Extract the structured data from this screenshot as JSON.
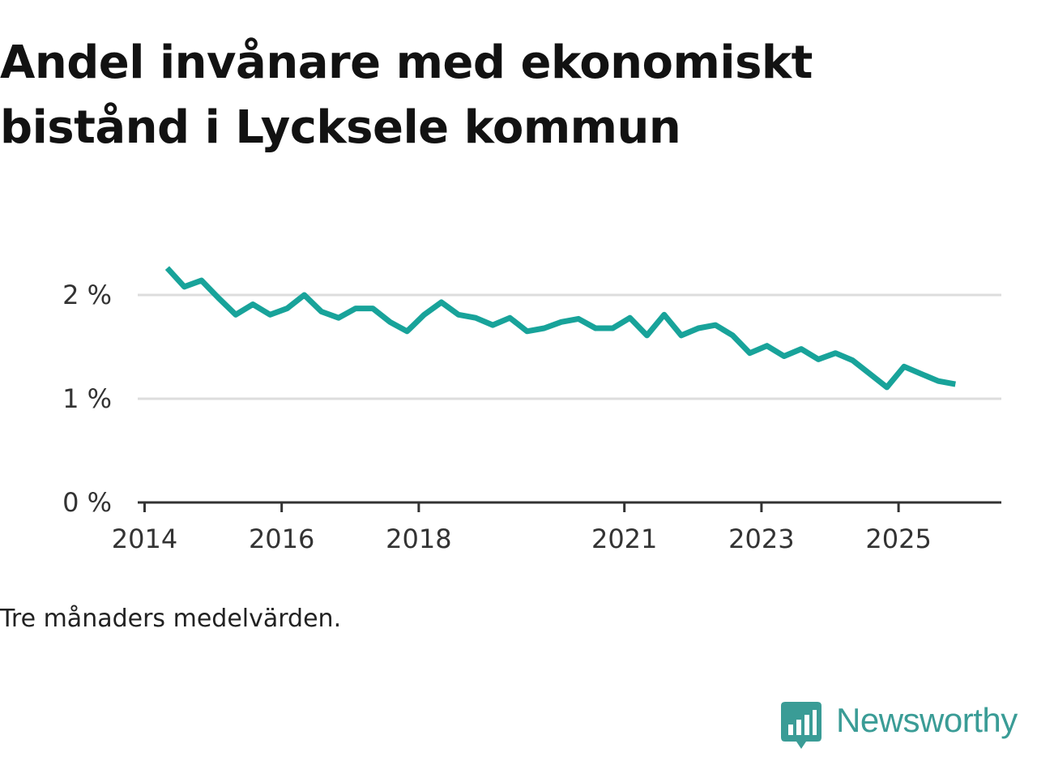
{
  "title": "Andel invånare med ekonomiskt bistånd i Lycksele kommun",
  "note": "Tre månaders medelvärden.",
  "brand": {
    "name": "Newsworthy",
    "color": "#3a9c96"
  },
  "colors": {
    "line": "#18a39a",
    "grid": "#dddddd",
    "axis": "#333333"
  },
  "chart_data": {
    "type": "line",
    "title": "Andel invånare med ekonomiskt bistånd i Lycksele kommun",
    "xlabel": "",
    "ylabel": "",
    "unit": "%",
    "xlim": [
      2013.9,
      2026.5
    ],
    "ylim": [
      0,
      2.5
    ],
    "x_ticks": [
      {
        "value": 2014,
        "label": "2014"
      },
      {
        "value": 2016,
        "label": "2016"
      },
      {
        "value": 2018,
        "label": "2018"
      },
      {
        "value": 2021,
        "label": "2021"
      },
      {
        "value": 2023,
        "label": "2023"
      },
      {
        "value": 2025,
        "label": "2025"
      }
    ],
    "y_ticks": [
      {
        "value": 0,
        "label": "0 %"
      },
      {
        "value": 1,
        "label": "1 %"
      },
      {
        "value": 2,
        "label": "2 %"
      }
    ],
    "grid": true,
    "series": [
      {
        "name": "Andel invånare med ekonomiskt bistånd",
        "x": [
          2014.33,
          2014.58,
          2014.83,
          2015.08,
          2015.33,
          2015.58,
          2015.83,
          2016.08,
          2016.33,
          2016.58,
          2016.83,
          2017.08,
          2017.33,
          2017.58,
          2017.83,
          2018.08,
          2018.33,
          2018.58,
          2018.83,
          2019.08,
          2019.33,
          2019.58,
          2019.83,
          2020.08,
          2020.33,
          2020.58,
          2020.83,
          2021.08,
          2021.33,
          2021.58,
          2021.83,
          2022.08,
          2022.33,
          2022.58,
          2022.83,
          2023.08,
          2023.33,
          2023.58,
          2023.83,
          2024.08,
          2024.33,
          2024.58,
          2024.83,
          2025.08,
          2025.33,
          2025.58,
          2025.83
        ],
        "values": [
          2.26,
          2.08,
          2.14,
          1.97,
          1.81,
          1.91,
          1.81,
          1.87,
          2.0,
          1.84,
          1.78,
          1.87,
          1.87,
          1.74,
          1.65,
          1.81,
          1.93,
          1.81,
          1.78,
          1.71,
          1.78,
          1.65,
          1.68,
          1.74,
          1.77,
          1.68,
          1.68,
          1.78,
          1.61,
          1.81,
          1.61,
          1.68,
          1.71,
          1.61,
          1.44,
          1.51,
          1.41,
          1.48,
          1.38,
          1.44,
          1.37,
          1.24,
          1.11,
          1.31,
          1.24,
          1.17,
          1.14
        ]
      }
    ]
  }
}
